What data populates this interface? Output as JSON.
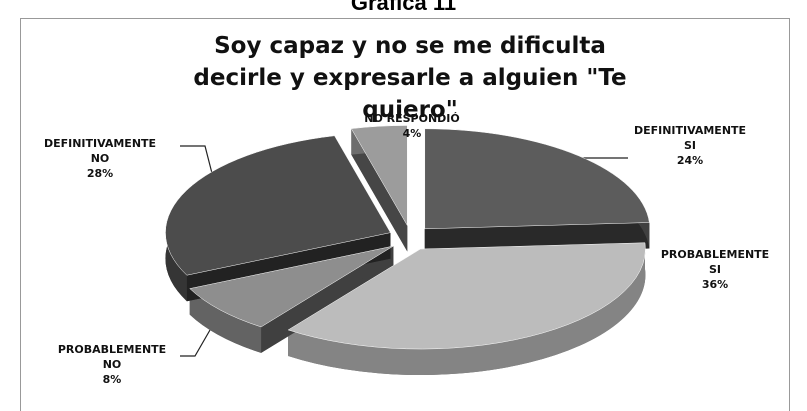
{
  "header": "Gráfica 11",
  "chart_data": {
    "type": "pie3d",
    "title": "Soy capaz y no se me dificulta decirle y expresarle a alguien \"Te quiero\"",
    "categories": [
      "DEFINITIVAMENTE SI",
      "PROBABLEMENTE SI",
      "PROBABLEMENTE NO",
      "DEFINITIVAMENTE NO",
      "NO RESPONDIÓ"
    ],
    "values": [
      24,
      36,
      8,
      28,
      4
    ],
    "value_labels": [
      "24%",
      "36%",
      "8%",
      "28%",
      "4%"
    ],
    "colors": [
      "#5c5c5c",
      "#bcbcbc",
      "#8e8e8e",
      "#4c4c4c",
      "#9c9c9c"
    ]
  }
}
